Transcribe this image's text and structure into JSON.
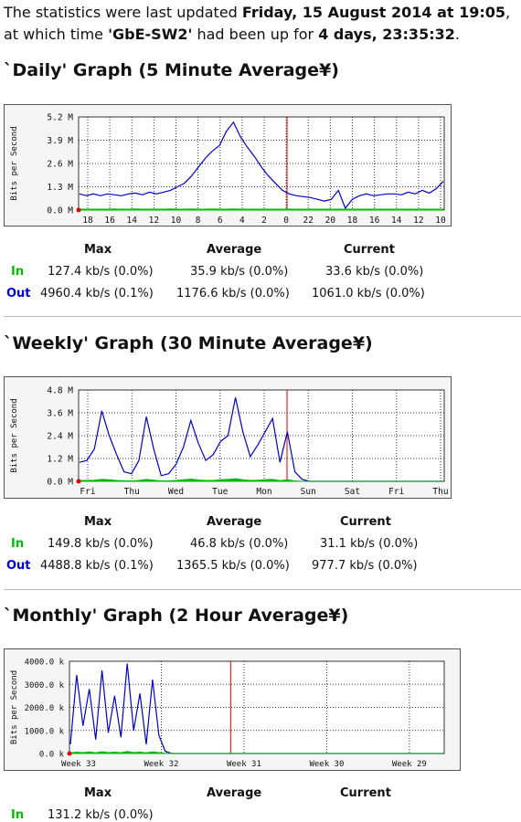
{
  "intro": {
    "prefix": "The statistics were last updated",
    "updated": "Friday, 15 August 2014 at 19:05",
    "mid1": ", at which time",
    "device": "'GbE-SW2'",
    "mid2": "had been up for",
    "uptime": "4 days, 23:35:32",
    "suffix": "."
  },
  "colors": {
    "in": "#00bb00",
    "out": "#0000c8",
    "now_marker": "#dd0000"
  },
  "stats_headers": {
    "max": "Max",
    "average": "Average",
    "current": "Current"
  },
  "stats_labels": {
    "in": "In",
    "out": "Out"
  },
  "sections": [
    {
      "title": "`Daily' Graph (5 Minute Average¥)",
      "ylabel": "Bits per Second",
      "stats": {
        "in": {
          "max": "127.4 kb/s (0.0%)",
          "average": "35.9 kb/s (0.0%)",
          "current": "33.6 kb/s (0.0%)"
        },
        "out": {
          "max": "4960.4 kb/s (0.1%)",
          "average": "1176.6 kb/s (0.0%)",
          "current": "1061.0 kb/s (0.0%)"
        }
      }
    },
    {
      "title": "`Weekly' Graph (30 Minute Average¥)",
      "ylabel": "Bits per Second",
      "stats": {
        "in": {
          "max": "149.8 kb/s (0.0%)",
          "average": "46.8 kb/s (0.0%)",
          "current": "31.1 kb/s (0.0%)"
        },
        "out": {
          "max": "4488.8 kb/s (0.1%)",
          "average": "1365.5 kb/s (0.0%)",
          "current": "977.7 kb/s (0.0%)"
        }
      }
    },
    {
      "title": "`Monthly' Graph (2 Hour Average¥)",
      "ylabel": "Bits per Second",
      "stats": {
        "in": {
          "max": "131.2 kb/s (0.0%)"
        }
      }
    }
  ],
  "chart_data": [
    {
      "type": "line",
      "title": "`Daily' Graph (5 Minute Average¥)",
      "ylabel": "Bits per Second",
      "ytick_labels": [
        "0.0 M",
        "1.3 M",
        "2.6 M",
        "3.9 M",
        "5.2 M"
      ],
      "yticks": [
        0,
        1.3,
        2.6,
        3.9,
        5.2
      ],
      "ylim": [
        0,
        5.2
      ],
      "x_labels": [
        "18",
        "16",
        "14",
        "12",
        "10",
        "8",
        "6",
        "4",
        "2",
        "0",
        "22",
        "20",
        "18",
        "16",
        "14",
        "12",
        "10"
      ],
      "grid": true,
      "now_marker_label": "0",
      "series": [
        {
          "values": [
            0.9,
            0.8,
            0.9,
            0.8,
            0.9,
            0.85,
            0.8,
            0.9,
            0.95,
            0.85,
            1.0,
            0.9,
            1.0,
            1.1,
            1.3,
            1.5,
            1.9,
            2.4,
            2.9,
            3.3,
            3.6,
            4.4,
            4.9,
            4.1,
            3.5,
            3.0,
            2.4,
            1.9,
            1.5,
            1.1,
            0.9,
            0.8,
            0.75,
            0.7,
            0.6,
            0.5,
            0.6,
            1.1,
            0.1,
            0.6,
            0.8,
            0.9,
            0.8,
            0.85,
            0.9,
            0.9,
            0.85,
            1.0,
            0.9,
            1.1,
            0.95,
            1.2,
            1.6
          ]
        },
        {
          "values": [
            0.05,
            0.05,
            0.05,
            0.05,
            0.05,
            0.06,
            0.05,
            0.05,
            0.06,
            0.05,
            0.05,
            0.05,
            0.05,
            0.06,
            0.05,
            0.05,
            0.06,
            0.05,
            0.05,
            0.06,
            0.05,
            0.05,
            0.06,
            0.05,
            0.05,
            0.05,
            0.05,
            0.05,
            0.05,
            0.05,
            0.05,
            0.05,
            0.05,
            0.05,
            0.05,
            0.05,
            0.05,
            0.05,
            0.05,
            0.05,
            0.05,
            0.05,
            0.05,
            0.05,
            0.05,
            0.05,
            0.05,
            0.05,
            0.05,
            0.05,
            0.05,
            0.05,
            0.05
          ]
        }
      ]
    },
    {
      "type": "line",
      "title": "`Weekly' Graph (30 Minute Average¥)",
      "ylabel": "Bits per Second",
      "ytick_labels": [
        "0.0 M",
        "1.2 M",
        "2.4 M",
        "3.6 M",
        "4.8 M"
      ],
      "yticks": [
        0,
        1.2,
        2.4,
        3.6,
        4.8
      ],
      "ylim": [
        0,
        4.8
      ],
      "x_labels": [
        "Fri",
        "Thu",
        "Wed",
        "Tue",
        "Mon",
        "Sun",
        "Sat",
        "Fri",
        "Thu"
      ],
      "grid": true,
      "series": [
        {
          "values": [
            1.0,
            1.1,
            1.7,
            3.7,
            2.4,
            1.4,
            0.5,
            0.4,
            1.1,
            3.4,
            1.7,
            0.3,
            0.4,
            0.9,
            1.8,
            3.2,
            2.0,
            1.1,
            1.4,
            2.1,
            2.4,
            4.4,
            2.6,
            1.3,
            1.9,
            2.6,
            3.3,
            1.0,
            2.6,
            0.5,
            0.1,
            0,
            0,
            0,
            0,
            0,
            0,
            0,
            0,
            0,
            0,
            0,
            0,
            0,
            0,
            0,
            0,
            0,
            0,
            0
          ]
        },
        {
          "values": [
            0.05,
            0.05,
            0.06,
            0.1,
            0.08,
            0.05,
            0.03,
            0.02,
            0.05,
            0.1,
            0.06,
            0.02,
            0.03,
            0.05,
            0.08,
            0.12,
            0.07,
            0.05,
            0.05,
            0.08,
            0.1,
            0.14,
            0.08,
            0.05,
            0.06,
            0.08,
            0.1,
            0.04,
            0.08,
            0.02,
            0,
            0,
            0,
            0,
            0,
            0,
            0,
            0,
            0,
            0,
            0,
            0,
            0,
            0,
            0,
            0,
            0,
            0,
            0,
            0
          ]
        }
      ]
    },
    {
      "type": "line",
      "title": "`Monthly' Graph (2 Hour Average¥)",
      "ylabel": "Bits per Second",
      "ytick_labels": [
        "0.0 k",
        "1000.0 k",
        "2000.0 k",
        "3000.0 k",
        "4000.0 k"
      ],
      "yticks": [
        0,
        1000,
        2000,
        3000,
        4000
      ],
      "ylim": [
        0,
        4000
      ],
      "x_labels": [
        "Week 33",
        "Week 32",
        "Week 31",
        "Week 30",
        "Week 29"
      ],
      "grid": true,
      "series": [
        {
          "values": [
            400,
            3400,
            1200,
            2800,
            600,
            3600,
            900,
            2500,
            700,
            3900,
            1000,
            2600,
            400,
            3200,
            800,
            100,
            0,
            0,
            0,
            0,
            0,
            0,
            0,
            0,
            0,
            0,
            0,
            0,
            0,
            0,
            0,
            0,
            0,
            0,
            0,
            0,
            0,
            0,
            0,
            0,
            0,
            0,
            0,
            0,
            0,
            0,
            0,
            0,
            0,
            0,
            0,
            0,
            0,
            0,
            0,
            0,
            0,
            0,
            0,
            0
          ]
        },
        {
          "values": [
            30,
            60,
            40,
            70,
            30,
            80,
            40,
            60,
            35,
            90,
            40,
            60,
            30,
            70,
            40,
            10,
            0,
            0,
            0,
            0,
            0,
            0,
            0,
            0,
            0,
            0,
            0,
            0,
            0,
            0,
            0,
            0,
            0,
            0,
            0,
            0,
            0,
            0,
            0,
            0,
            0,
            0,
            0,
            0,
            0,
            0,
            0,
            0,
            0,
            0,
            0,
            0,
            0,
            0,
            0,
            0,
            0,
            0,
            0,
            0
          ]
        }
      ]
    }
  ]
}
